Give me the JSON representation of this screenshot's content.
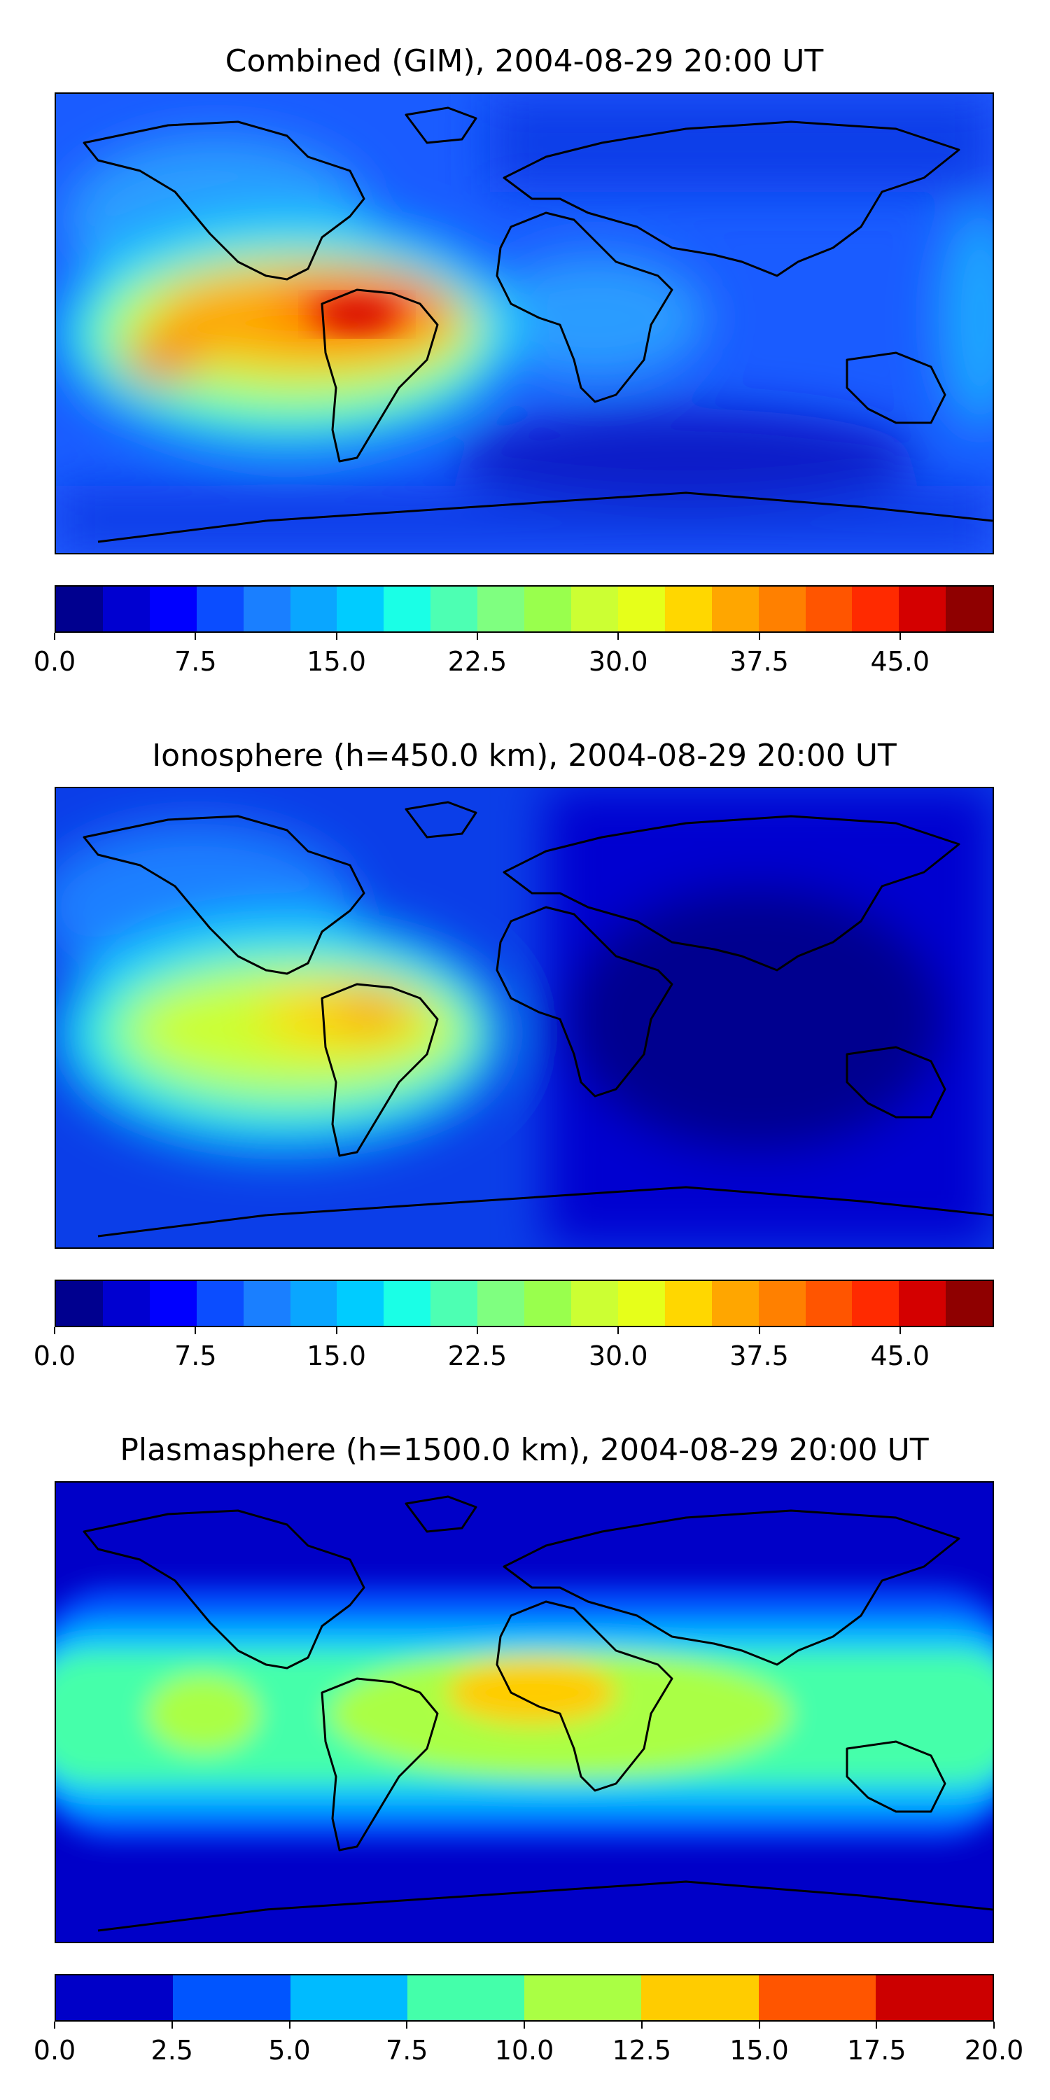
{
  "figure": {
    "panels": [
      {
        "id": "combined",
        "title": "Combined (GIM), 2004-08-29 20:00 UT",
        "variant": "combined",
        "colorbar": {
          "colors": [
            "#00008f",
            "#0000d0",
            "#0000ff",
            "#0b4dff",
            "#1a7fff",
            "#0aa6ff",
            "#00ccff",
            "#1affe6",
            "#4dffb3",
            "#7fff80",
            "#99ff4d",
            "#ccff33",
            "#e6ff1a",
            "#ffd700",
            "#ffa600",
            "#ff8000",
            "#ff5500",
            "#ff2a00",
            "#d40000",
            "#8f0000"
          ],
          "ticks": [
            "0.0",
            "7.5",
            "15.0",
            "22.5",
            "30.0",
            "37.5",
            "45.0"
          ],
          "tick_values": [
            0,
            7.5,
            15,
            22.5,
            30,
            37.5,
            45
          ],
          "range": [
            0,
            50
          ]
        }
      },
      {
        "id": "ionosphere",
        "title": "Ionosphere  (h=450.0 km), 2004-08-29 20:00 UT",
        "variant": "ionosphere",
        "colorbar": {
          "colors": [
            "#00008f",
            "#0000d0",
            "#0000ff",
            "#0b4dff",
            "#1a7fff",
            "#0aa6ff",
            "#00ccff",
            "#1affe6",
            "#4dffb3",
            "#7fff80",
            "#99ff4d",
            "#ccff33",
            "#e6ff1a",
            "#ffd700",
            "#ffa600",
            "#ff8000",
            "#ff5500",
            "#ff2a00",
            "#d40000",
            "#8f0000"
          ],
          "ticks": [
            "0.0",
            "7.5",
            "15.0",
            "22.5",
            "30.0",
            "37.5",
            "45.0"
          ],
          "tick_values": [
            0,
            7.5,
            15,
            22.5,
            30,
            37.5,
            45
          ],
          "range": [
            0,
            50
          ]
        }
      },
      {
        "id": "plasmasphere",
        "title": "Plasmasphere (h=1500.0 km), 2004-08-29 20:00 UT",
        "variant": "plasmasphere",
        "colorbar": {
          "colors": [
            "#0000c8",
            "#0055ff",
            "#00bbff",
            "#44ffaa",
            "#aaff44",
            "#ffcc00",
            "#ff5500",
            "#cc0000"
          ],
          "ticks": [
            "0.0",
            "2.5",
            "5.0",
            "7.5",
            "10.0",
            "12.5",
            "15.0",
            "17.5",
            "20.0"
          ],
          "tick_values": [
            0,
            2.5,
            5,
            7.5,
            10,
            12.5,
            15,
            17.5,
            20
          ],
          "range": [
            0,
            20
          ]
        }
      }
    ]
  },
  "colors": {
    "deep_blue": "#0000a8",
    "blue": "#0022ff",
    "light_blue": "#1a7fff",
    "cyan": "#00ccff",
    "green": "#4dffb3",
    "yellow": "#e6ff1a",
    "orange": "#ffa600",
    "red": "#ff2a00",
    "coast": "#000000"
  }
}
